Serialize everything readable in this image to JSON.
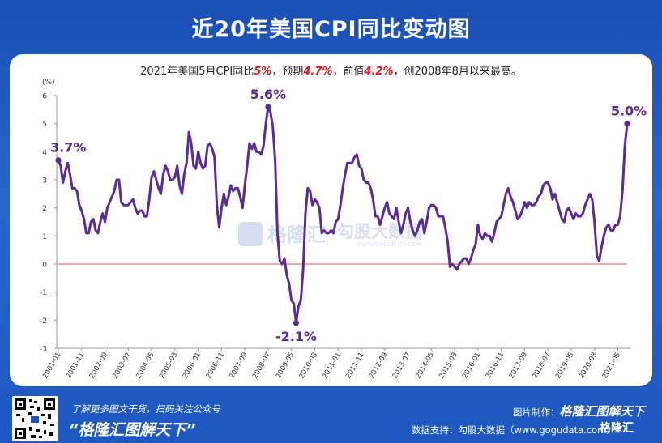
{
  "title": "近20年美国CPI同比变动图",
  "subtitle": {
    "prefix": "2021年美国5月CPI同比",
    "actual": "5%",
    "sep1": "，预期",
    "expected": "4.7%",
    "sep2": "，前值",
    "previous": "4.2%",
    "suffix": "，创2008年8月以来最高。"
  },
  "watermark": {
    "left": "格隆汇",
    "right": "勾股大数据",
    "url": "WWW.GOGUDATA.COM"
  },
  "footer": {
    "line1": "了解更多图文干货，扫码关注公众号",
    "line2": "“格隆汇图解天下”",
    "credit_make_label": "图片制作：",
    "credit_make_value": "格隆汇图解天下",
    "credit_data": "数据支持：勾股大数据（www.gogudata.com）",
    "corner_logo": "格隆汇"
  },
  "colors": {
    "background": "#1f56b8",
    "line": "#5b2a96",
    "zero_line": "#e8141c",
    "highlight": "#e8141c"
  },
  "chart_data": {
    "type": "line",
    "ylabel": "(%)",
    "ylim": [
      -3,
      6
    ],
    "yticks": [
      -3,
      -2,
      -1,
      0,
      1,
      2,
      3,
      4,
      5,
      6
    ],
    "x_tick_labels": [
      "2001-01",
      "2001-11",
      "2002-09",
      "2003-07",
      "2004-05",
      "2005-03",
      "2006-01",
      "2006-11",
      "2007-09",
      "2008-07",
      "2009-05",
      "2010-03",
      "2011-01",
      "2011-11",
      "2012-09",
      "2013-07",
      "2014-05",
      "2015-03",
      "2016-01",
      "2016-11",
      "2017-09",
      "2018-07",
      "2019-05",
      "2020-03",
      "2021-05"
    ],
    "annotations": [
      {
        "label": "3.7%",
        "month_index": 0,
        "value": 3.7
      },
      {
        "label": "5.6%",
        "month_index": 90,
        "value": 5.6
      },
      {
        "label": "-2.1%",
        "month_index": 102,
        "value": -2.1
      },
      {
        "label": "5.0%",
        "month_index": 244,
        "value": 5.0
      }
    ],
    "series": [
      {
        "start": "2001-01",
        "frequency": "monthly",
        "values": [
          3.7,
          3.5,
          2.9,
          3.3,
          3.6,
          3.2,
          2.7,
          2.7,
          2.6,
          2.1,
          1.9,
          1.6,
          1.1,
          1.1,
          1.5,
          1.6,
          1.2,
          1.1,
          1.5,
          1.8,
          1.5,
          2.0,
          2.2,
          2.4,
          2.6,
          3.0,
          3.0,
          2.2,
          2.1,
          2.1,
          2.1,
          2.2,
          2.3,
          2.0,
          1.8,
          1.9,
          1.9,
          1.7,
          1.7,
          2.3,
          3.1,
          3.3,
          3.0,
          2.7,
          2.5,
          3.2,
          3.5,
          3.3,
          3.0,
          3.0,
          3.1,
          3.5,
          2.8,
          2.5,
          3.2,
          3.6,
          4.7,
          4.3,
          3.5,
          3.4,
          4.0,
          3.6,
          3.4,
          3.5,
          4.2,
          4.3,
          4.1,
          3.8,
          2.1,
          1.3,
          2.0,
          2.5,
          2.1,
          2.4,
          2.8,
          2.6,
          2.7,
          2.7,
          2.4,
          2.0,
          2.8,
          3.5,
          4.3,
          4.1,
          4.3,
          4.0,
          4.0,
          3.9,
          4.2,
          5.0,
          5.6,
          5.4,
          4.9,
          3.7,
          1.1,
          0.1,
          0.0,
          0.2,
          -0.4,
          -0.7,
          -1.3,
          -1.4,
          -2.1,
          -1.5,
          -1.3,
          -0.2,
          1.8,
          2.7,
          2.6,
          2.1,
          2.3,
          2.2,
          2.0,
          1.1,
          1.2,
          1.1,
          1.1,
          1.2,
          1.1,
          1.5,
          1.6,
          2.1,
          2.7,
          3.2,
          3.6,
          3.6,
          3.6,
          3.8,
          3.9,
          3.5,
          3.4,
          3.0,
          2.9,
          2.9,
          2.7,
          2.3,
          1.7,
          1.7,
          1.4,
          1.7,
          2.0,
          2.2,
          1.8,
          1.7,
          1.6,
          2.0,
          1.5,
          1.1,
          1.4,
          1.8,
          2.0,
          1.5,
          1.2,
          1.0,
          1.2,
          1.5,
          1.6,
          1.1,
          1.5,
          2.0,
          2.1,
          2.1,
          2.0,
          1.7,
          1.7,
          1.7,
          1.3,
          0.8,
          -0.1,
          0.0,
          -0.1,
          -0.2,
          0.0,
          0.1,
          0.2,
          0.2,
          0.0,
          0.2,
          0.5,
          0.7,
          1.4,
          1.0,
          0.9,
          1.1,
          1.0,
          1.0,
          0.8,
          1.1,
          1.5,
          1.6,
          1.7,
          2.1,
          2.5,
          2.7,
          2.4,
          2.2,
          1.9,
          1.6,
          1.7,
          1.9,
          2.2,
          2.0,
          2.2,
          2.1,
          2.1,
          2.2,
          2.4,
          2.5,
          2.8,
          2.9,
          2.9,
          2.7,
          2.3,
          2.5,
          2.2,
          1.9,
          1.6,
          1.5,
          1.9,
          2.0,
          1.8,
          1.6,
          1.8,
          1.7,
          1.7,
          1.8,
          2.1,
          2.3,
          2.5,
          2.3,
          1.5,
          0.3,
          0.1,
          0.6,
          1.0,
          1.3,
          1.4,
          1.2,
          1.2,
          1.4,
          1.4,
          1.7,
          2.6,
          4.2,
          5.0
        ]
      }
    ]
  }
}
